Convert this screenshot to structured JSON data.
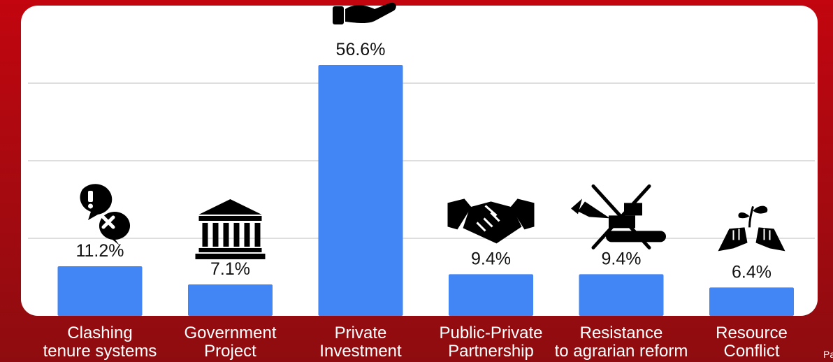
{
  "colors": {
    "background": "#b00910",
    "panel": "#ffffff",
    "bar": "#4285f4",
    "gridline": "#dedede",
    "label_text": "#111111",
    "category_text": "#ffffff"
  },
  "corner_text": "Pa",
  "chart_data": {
    "type": "bar",
    "categories": [
      "Clashing tenure systems",
      "Government Project",
      "Private Investment",
      "Public-Private Partnership",
      "Resistance to agrarian reform",
      "Resource Conflict"
    ],
    "category_lines": [
      [
        "Clashing",
        "tenure systems"
      ],
      [
        "Government",
        "Project"
      ],
      [
        "Private",
        "Investment"
      ],
      [
        "Public-Private",
        "Partnership"
      ],
      [
        "Resistance",
        "to agrarian reform"
      ],
      [
        "Resource",
        "Conflict"
      ]
    ],
    "values": [
      11.2,
      7.1,
      56.6,
      9.4,
      9.4,
      6.4
    ],
    "data_labels": [
      "11.2%",
      "7.1%",
      "56.6%",
      "9.4%",
      "9.4%",
      "6.4%"
    ],
    "icons": [
      "conflict-speech-icon",
      "government-building-icon",
      "peso-hand-icon",
      "handshake-icon",
      "crossed-out-bulldozer-icon",
      "seedling-fists-icon"
    ],
    "ylim": [
      0,
      70
    ],
    "grid": true,
    "xlabel": "",
    "ylabel": "",
    "title": ""
  }
}
